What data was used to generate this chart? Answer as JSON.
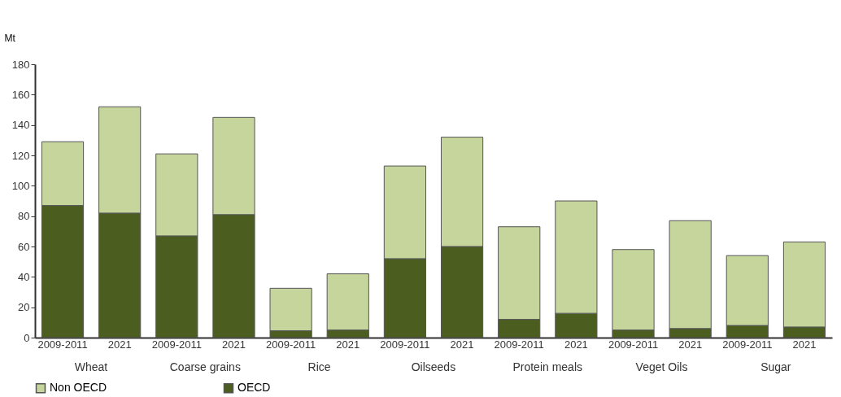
{
  "chart_data": {
    "type": "bar",
    "stacked": true,
    "ylabel": "Mt",
    "categories": [
      "2009-2011",
      "2021",
      "2009-2011",
      "2021",
      "2009-2011",
      "2021",
      "2009-2011",
      "2021",
      "2009-2011",
      "2021",
      "2009-2011",
      "2021",
      "2009-2011",
      "2021"
    ],
    "annotations": [
      "Wheat",
      "Coarse grains",
      "Rice",
      "Oilseeds",
      "Protein meals",
      "Veget Oils",
      "Sugar"
    ],
    "series": [
      {
        "name": "OECD",
        "color": "#4b5e20",
        "values": [
          87,
          82,
          67,
          81,
          4.5,
          5,
          52,
          60,
          12,
          16,
          5,
          6,
          8,
          7
        ]
      },
      {
        "name": "Non OECD",
        "color": "#c5d59c",
        "values": [
          42,
          70,
          54,
          64,
          28,
          37,
          61,
          72,
          61,
          74,
          53,
          71,
          46,
          56
        ]
      }
    ],
    "ylim": [
      0,
      180
    ],
    "yticks": [
      0,
      20,
      40,
      60,
      80,
      100,
      120,
      140,
      160,
      180
    ],
    "grid": false,
    "legend": "bottom left"
  }
}
